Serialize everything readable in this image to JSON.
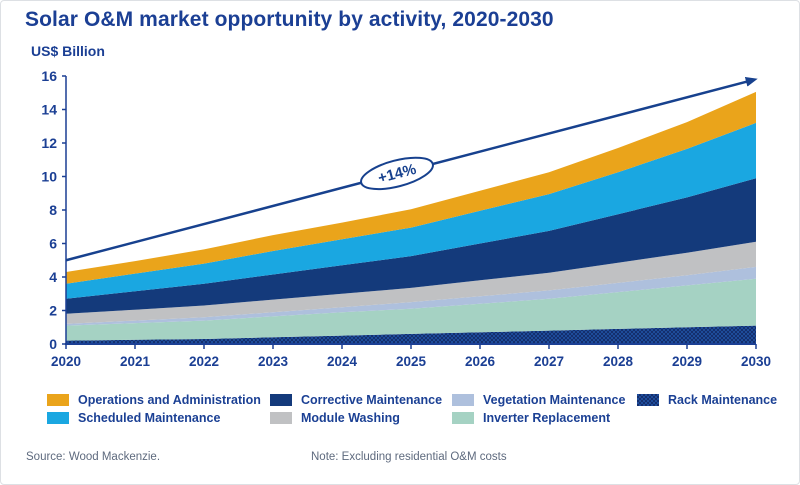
{
  "chart_data": {
    "type": "area",
    "stacked": true,
    "title": "Solar O&M market opportunity by activity, 2020-2030",
    "ylabel": "US$ Billion",
    "x": [
      2020,
      2021,
      2022,
      2023,
      2024,
      2025,
      2026,
      2027,
      2028,
      2029,
      2030
    ],
    "ylim": [
      0,
      16
    ],
    "yticks": [
      0,
      2,
      4,
      6,
      8,
      10,
      12,
      14,
      16
    ],
    "grid": false,
    "legend_position": "bottom",
    "series": [
      {
        "name": "Rack Maintenance",
        "color": "#1E4C9A",
        "pattern": "checker",
        "values": [
          0.2,
          0.25,
          0.3,
          0.4,
          0.5,
          0.6,
          0.7,
          0.8,
          0.9,
          1.0,
          1.1
        ]
      },
      {
        "name": "Inverter Replacement",
        "color": "#A5D2C3",
        "values": [
          0.9,
          1.0,
          1.1,
          1.25,
          1.4,
          1.5,
          1.7,
          1.9,
          2.2,
          2.5,
          2.8
        ]
      },
      {
        "name": "Vegetation Maintenance",
        "color": "#AEC0DD",
        "values": [
          0.1,
          0.15,
          0.2,
          0.25,
          0.3,
          0.4,
          0.45,
          0.5,
          0.55,
          0.6,
          0.7
        ]
      },
      {
        "name": "Module Washing",
        "color": "#C0C1C3",
        "values": [
          0.6,
          0.65,
          0.7,
          0.75,
          0.8,
          0.85,
          0.95,
          1.05,
          1.2,
          1.35,
          1.5
        ]
      },
      {
        "name": "Corrective Maintenance",
        "color": "#143A7B",
        "values": [
          0.9,
          1.1,
          1.3,
          1.5,
          1.7,
          1.9,
          2.2,
          2.5,
          2.9,
          3.3,
          3.8
        ]
      },
      {
        "name": "Scheduled Maintenance",
        "color": "#1AA7E1",
        "values": [
          0.9,
          1.05,
          1.2,
          1.4,
          1.55,
          1.7,
          1.95,
          2.2,
          2.5,
          2.9,
          3.3
        ]
      },
      {
        "name": "Operations and Administration",
        "color": "#EAA41B",
        "values": [
          0.7,
          0.75,
          0.85,
          0.95,
          1.0,
          1.1,
          1.2,
          1.3,
          1.45,
          1.6,
          1.85
        ]
      }
    ],
    "trend_arrow": {
      "from": [
        2020,
        5.0
      ],
      "to": [
        2030,
        15.7
      ],
      "color": "#17418E"
    },
    "annotation": {
      "label": "+14%",
      "shape": "ellipse"
    }
  },
  "legend": {
    "columns": [
      [
        "Operations and Administration",
        "Scheduled Maintenance"
      ],
      [
        "Corrective Maintenance",
        "Module Washing"
      ],
      [
        "Vegetation Maintenance",
        "Inverter Replacement"
      ],
      [
        "Rack Maintenance"
      ]
    ]
  },
  "footer": {
    "source": "Source: Wood Mackenzie.",
    "note": "Note: Excluding residential O&M costs"
  },
  "colors": {
    "title": "#1B3F94",
    "axis": "#1B3F94",
    "arrow": "#17418E"
  }
}
